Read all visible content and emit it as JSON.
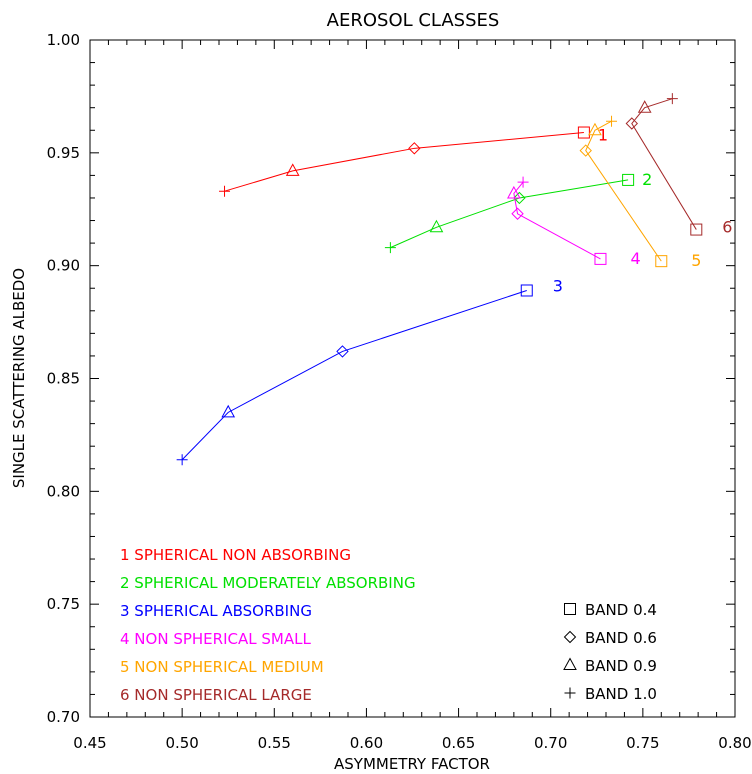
{
  "chart_data": {
    "type": "line",
    "title": "AEROSOL CLASSES",
    "xlabel": "ASYMMETRY FACTOR",
    "ylabel": "SINGLE SCATTERING ALBEDO",
    "xlim": [
      0.45,
      0.8
    ],
    "ylim": [
      0.7,
      1.0
    ],
    "xticks": [
      "0.45",
      "0.50",
      "0.55",
      "0.60",
      "0.65",
      "0.70",
      "0.75",
      "0.80"
    ],
    "yticks": [
      "0.70",
      "0.75",
      "0.80",
      "0.85",
      "0.90",
      "0.95",
      "1.00"
    ],
    "grid": false,
    "series": [
      {
        "name": "1 SPHERICAL NON ABSORBING",
        "label": "1",
        "color": "#ff0000",
        "points": [
          {
            "band": "1.0",
            "x": 0.523,
            "y": 0.933
          },
          {
            "band": "0.9",
            "x": 0.56,
            "y": 0.942
          },
          {
            "band": "0.6",
            "x": 0.626,
            "y": 0.952
          },
          {
            "band": "0.4",
            "x": 0.718,
            "y": 0.959
          }
        ]
      },
      {
        "name": "2 SPHERICAL MODERATELY ABSORBING",
        "label": "2",
        "color": "#00e000",
        "points": [
          {
            "band": "1.0",
            "x": 0.613,
            "y": 0.908
          },
          {
            "band": "0.9",
            "x": 0.638,
            "y": 0.917
          },
          {
            "band": "0.6",
            "x": 0.683,
            "y": 0.93
          },
          {
            "band": "0.4",
            "x": 0.742,
            "y": 0.938
          }
        ]
      },
      {
        "name": "3 SPHERICAL ABSORBING",
        "label": "3",
        "color": "#0000ff",
        "points": [
          {
            "band": "1.0",
            "x": 0.5,
            "y": 0.814
          },
          {
            "band": "0.9",
            "x": 0.525,
            "y": 0.835
          },
          {
            "band": "0.6",
            "x": 0.587,
            "y": 0.862
          },
          {
            "band": "0.4",
            "x": 0.687,
            "y": 0.889
          }
        ]
      },
      {
        "name": "4 NON SPHERICAL SMALL",
        "label": "4",
        "color": "#ff00ff",
        "points": [
          {
            "band": "1.0",
            "x": 0.685,
            "y": 0.937
          },
          {
            "band": "0.9",
            "x": 0.68,
            "y": 0.932
          },
          {
            "band": "0.6",
            "x": 0.682,
            "y": 0.923
          },
          {
            "band": "0.4",
            "x": 0.727,
            "y": 0.903
          }
        ]
      },
      {
        "name": "5 NON SPHERICAL MEDIUM",
        "label": "5",
        "color": "#ffa500",
        "points": [
          {
            "band": "1.0",
            "x": 0.733,
            "y": 0.964
          },
          {
            "band": "0.9",
            "x": 0.724,
            "y": 0.96
          },
          {
            "band": "0.6",
            "x": 0.719,
            "y": 0.951
          },
          {
            "band": "0.4",
            "x": 0.76,
            "y": 0.902
          }
        ]
      },
      {
        "name": "6 NON SPHERICAL LARGE",
        "label": "6",
        "color": "#a52a2a",
        "points": [
          {
            "band": "1.0",
            "x": 0.766,
            "y": 0.974
          },
          {
            "band": "0.9",
            "x": 0.751,
            "y": 0.97
          },
          {
            "band": "0.6",
            "x": 0.744,
            "y": 0.963
          },
          {
            "band": "0.4",
            "x": 0.779,
            "y": 0.916
          }
        ]
      }
    ],
    "marker_legend": [
      {
        "band": "0.4",
        "marker": "square",
        "label": "BAND 0.4"
      },
      {
        "band": "0.6",
        "marker": "diamond",
        "label": "BAND 0.6"
      },
      {
        "band": "0.9",
        "marker": "triangle",
        "label": "BAND 0.9"
      },
      {
        "band": "1.0",
        "marker": "plus",
        "label": "BAND 1.0"
      }
    ],
    "legend_position": "bottom-left",
    "marker_legend_position": "bottom-right"
  }
}
